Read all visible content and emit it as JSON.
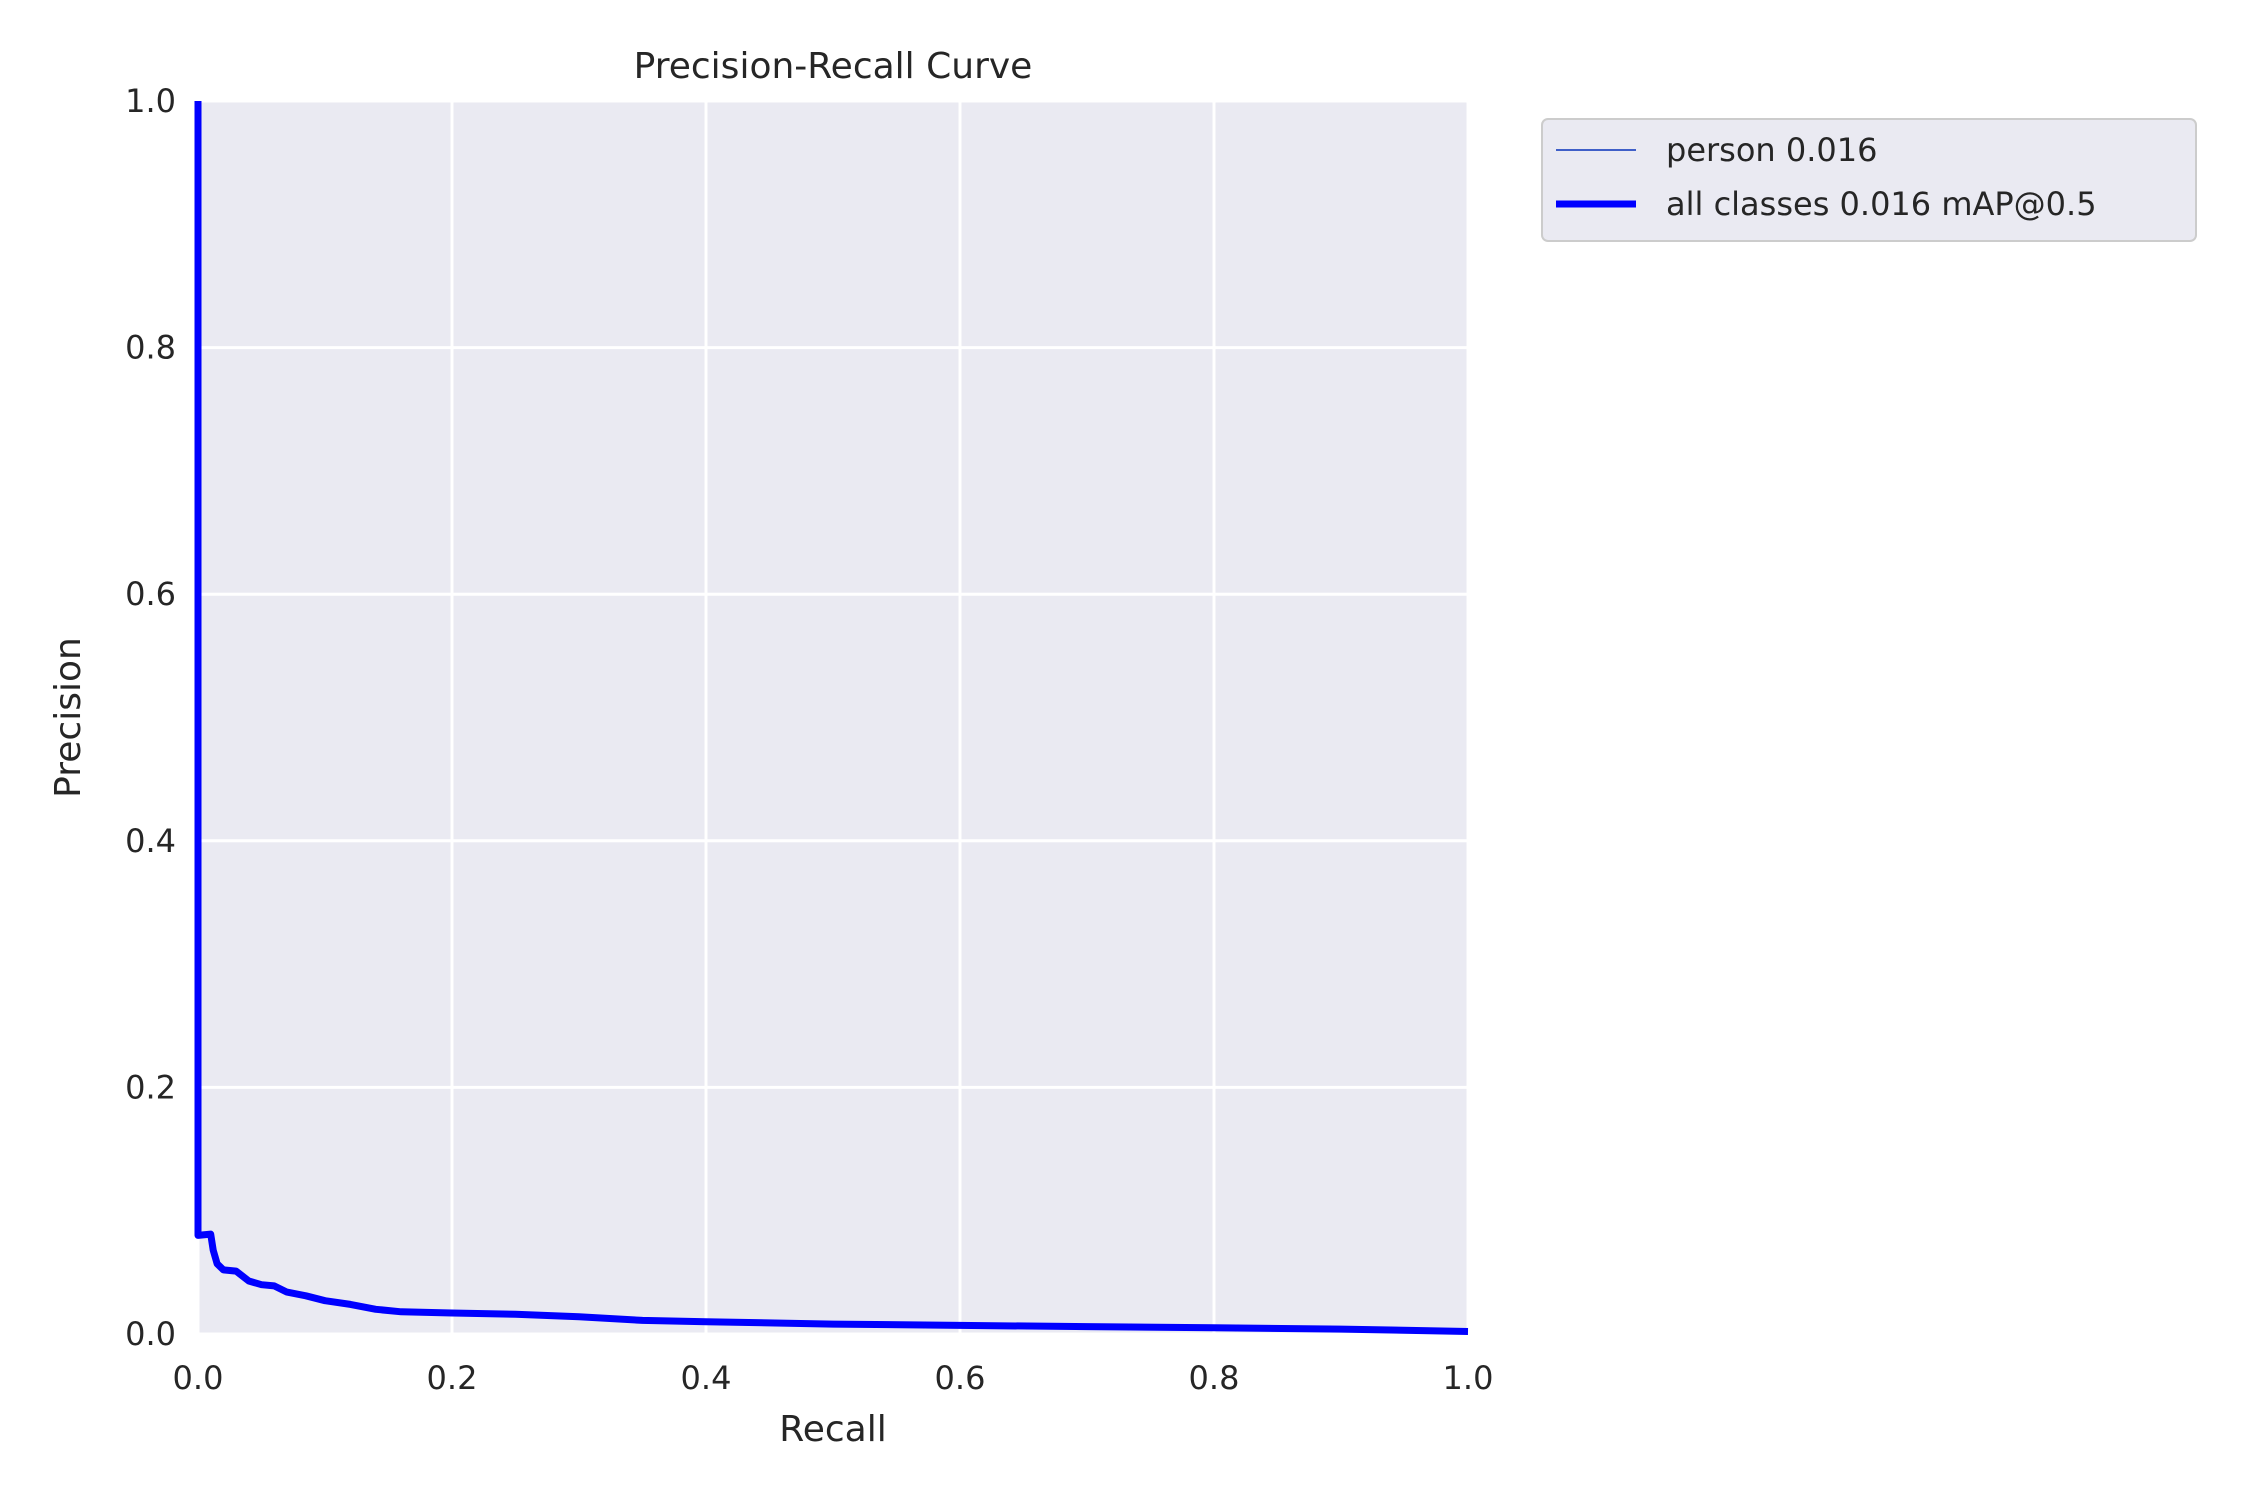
{
  "chart_data": {
    "type": "line",
    "title": "Precision-Recall Curve",
    "xlabel": "Recall",
    "ylabel": "Precision",
    "xlim": [
      0,
      1
    ],
    "ylim": [
      0,
      1
    ],
    "grid": true,
    "legend_position": "outside-top-right",
    "xticks": [
      "0.0",
      "0.2",
      "0.4",
      "0.6",
      "0.8",
      "1.0"
    ],
    "yticks": [
      "0.0",
      "0.2",
      "0.4",
      "0.6",
      "0.8",
      "1.0"
    ],
    "colors": {
      "plot_background": "#EAEAF2",
      "grid": "#FFFFFF",
      "person": "#3F5FC8",
      "all_classes": "#0000FF"
    },
    "series": [
      {
        "name": "person 0.016",
        "points": [
          [
            0.0,
            1.0
          ],
          [
            0.0,
            0.08
          ],
          [
            0.01,
            0.081
          ],
          [
            0.012,
            0.068
          ],
          [
            0.015,
            0.057
          ],
          [
            0.02,
            0.052
          ],
          [
            0.03,
            0.051
          ],
          [
            0.04,
            0.043
          ],
          [
            0.05,
            0.04
          ],
          [
            0.06,
            0.039
          ],
          [
            0.07,
            0.034
          ],
          [
            0.085,
            0.031
          ],
          [
            0.1,
            0.027
          ],
          [
            0.12,
            0.024
          ],
          [
            0.14,
            0.02
          ],
          [
            0.16,
            0.018
          ],
          [
            0.2,
            0.017
          ],
          [
            0.25,
            0.016
          ],
          [
            0.3,
            0.014
          ],
          [
            0.35,
            0.011
          ],
          [
            0.4,
            0.01
          ],
          [
            0.5,
            0.008
          ],
          [
            0.6,
            0.007
          ],
          [
            0.7,
            0.006
          ],
          [
            0.8,
            0.005
          ],
          [
            0.9,
            0.004
          ],
          [
            1.0,
            0.002
          ]
        ]
      },
      {
        "name": "all classes 0.016 mAP@0.5",
        "points": [
          [
            0.0,
            1.0
          ],
          [
            0.0,
            0.08
          ],
          [
            0.01,
            0.081
          ],
          [
            0.012,
            0.068
          ],
          [
            0.015,
            0.057
          ],
          [
            0.02,
            0.052
          ],
          [
            0.03,
            0.051
          ],
          [
            0.04,
            0.043
          ],
          [
            0.05,
            0.04
          ],
          [
            0.06,
            0.039
          ],
          [
            0.07,
            0.034
          ],
          [
            0.085,
            0.031
          ],
          [
            0.1,
            0.027
          ],
          [
            0.12,
            0.024
          ],
          [
            0.14,
            0.02
          ],
          [
            0.16,
            0.018
          ],
          [
            0.2,
            0.017
          ],
          [
            0.25,
            0.016
          ],
          [
            0.3,
            0.014
          ],
          [
            0.35,
            0.011
          ],
          [
            0.4,
            0.01
          ],
          [
            0.5,
            0.008
          ],
          [
            0.6,
            0.007
          ],
          [
            0.7,
            0.006
          ],
          [
            0.8,
            0.005
          ],
          [
            0.9,
            0.004
          ],
          [
            1.0,
            0.002
          ]
        ]
      }
    ]
  }
}
